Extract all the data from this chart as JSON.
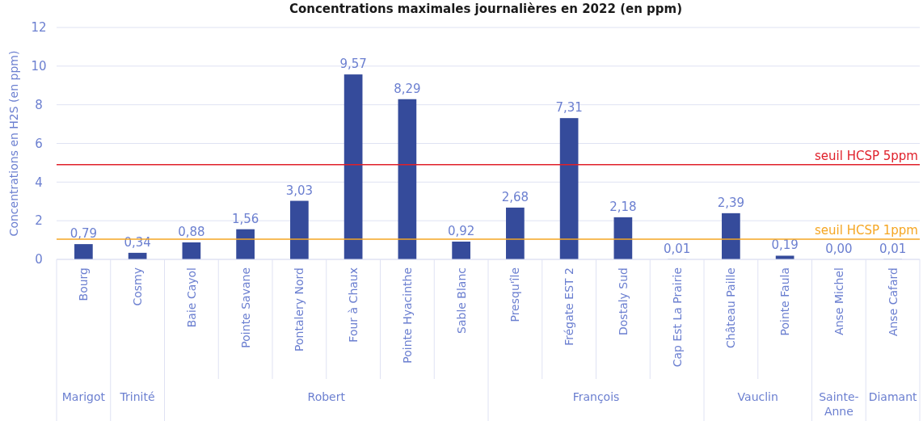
{
  "chart_data": {
    "type": "bar",
    "title": "Concentrations maximales journalières en 2022 (en ppm)",
    "ylabel": "Concentrations en H2S (en ppm)",
    "categories": [
      "Bourg",
      "Cosmy",
      "Baie Cayol",
      "Pointe Savane",
      "Pontalery Nord",
      "Four à Chaux",
      "Pointe Hyacinthe",
      "Sable Blanc",
      "Presqu'île",
      "Frégate EST 2",
      "Dostaly Sud",
      "Cap Est La Prairie",
      "Château Paille",
      "Pointe Faula",
      "Anse Michel",
      "Anse Cafard"
    ],
    "values": [
      0.79,
      0.34,
      0.88,
      1.56,
      3.03,
      9.57,
      8.29,
      0.92,
      2.68,
      7.31,
      2.18,
      0.01,
      2.39,
      0.19,
      0.0,
      0.01
    ],
    "value_labels": [
      "0,79",
      "0,34",
      "0,88",
      "1,56",
      "3,03",
      "9,57",
      "8,29",
      "0,92",
      "2,68",
      "7,31",
      "2,18",
      "0,01",
      "2,39",
      "0,19",
      "0,00",
      "0,01"
    ],
    "color": "#354b9b",
    "ylim": [
      0,
      12
    ],
    "yticks": [
      0,
      2,
      4,
      6,
      8,
      10,
      12
    ],
    "grid": "y",
    "ref_lines": [
      {
        "axis": "y",
        "value": 4.9,
        "label": "seuil HCSP 5ppm",
        "color": "#e0202a"
      },
      {
        "axis": "y",
        "value": 1.05,
        "label": "seuil HCSP 1ppm",
        "color": "#f5a623"
      }
    ],
    "annotations": [
      "Marigot",
      "Trinité",
      "Robert",
      "François",
      "Vauclin",
      "Sainte-Anne",
      "Diamant"
    ]
  }
}
